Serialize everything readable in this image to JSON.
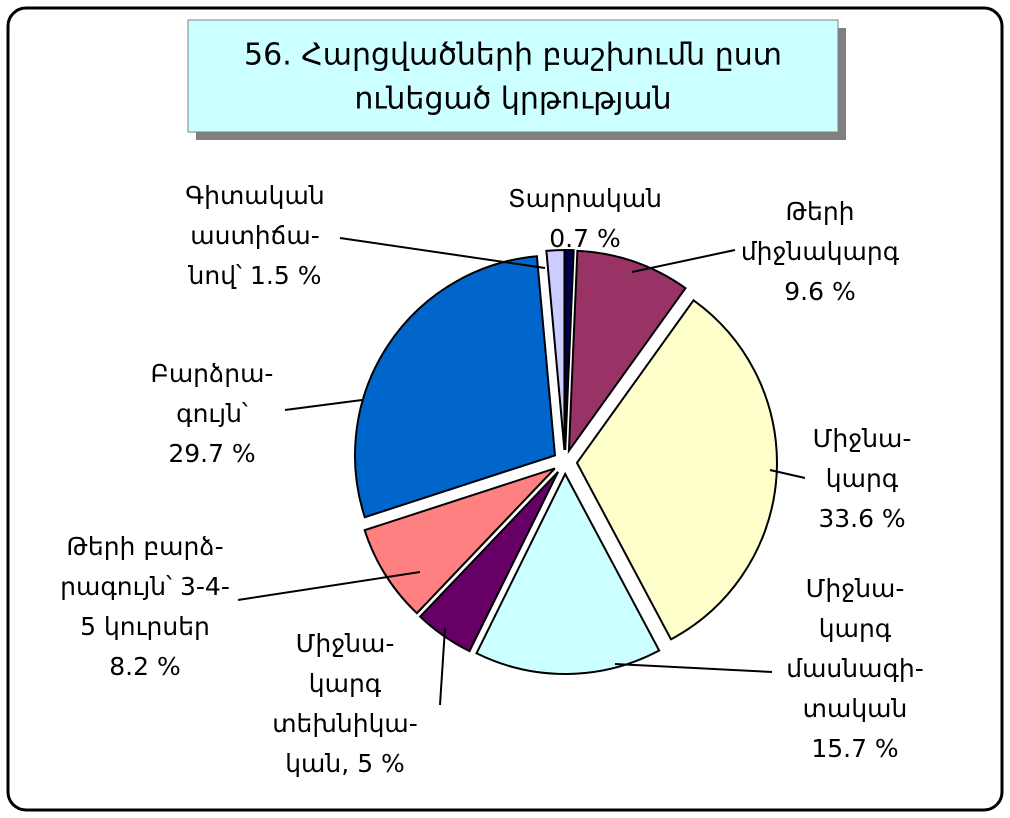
{
  "chart_data": {
    "type": "pie",
    "title": [
      "56. Հարցվածների բաշխումն ըստ",
      "ունեցած կրթության"
    ],
    "categories": [
      [
        "Տարրական"
      ],
      [
        "Թերի",
        "միջնակարգ"
      ],
      [
        "Միջնա-",
        "կարգ"
      ],
      [
        "Միջնա-",
        "կարգ",
        "մասնագի-",
        "տական"
      ],
      [
        "Միջնա-",
        "կարգ",
        "տեխնիկա-",
        "կան,"
      ],
      [
        "Թերի բարձ-",
        "րագույն՝ 3-4-",
        "5 կուրսեր"
      ],
      [
        "Բարձրա-",
        "գույն՝"
      ],
      [
        "Գիտական",
        "աստիճա-",
        "նով՝"
      ]
    ],
    "values": [
      0.7,
      9.6,
      33.6,
      15.7,
      5,
      8.2,
      29.7,
      1.5
    ],
    "value_labels": [
      "0.7 %",
      "9.6 %",
      "33.6 %",
      "15.7 %",
      "5 %",
      "8.2 %",
      "29.7 %",
      "1.5 %"
    ],
    "colors": [
      "#000050",
      "#993366",
      "#ffffcc",
      "#ccffff",
      "#660066",
      "#ff8080",
      "#0066cc",
      "#ccccff"
    ]
  }
}
